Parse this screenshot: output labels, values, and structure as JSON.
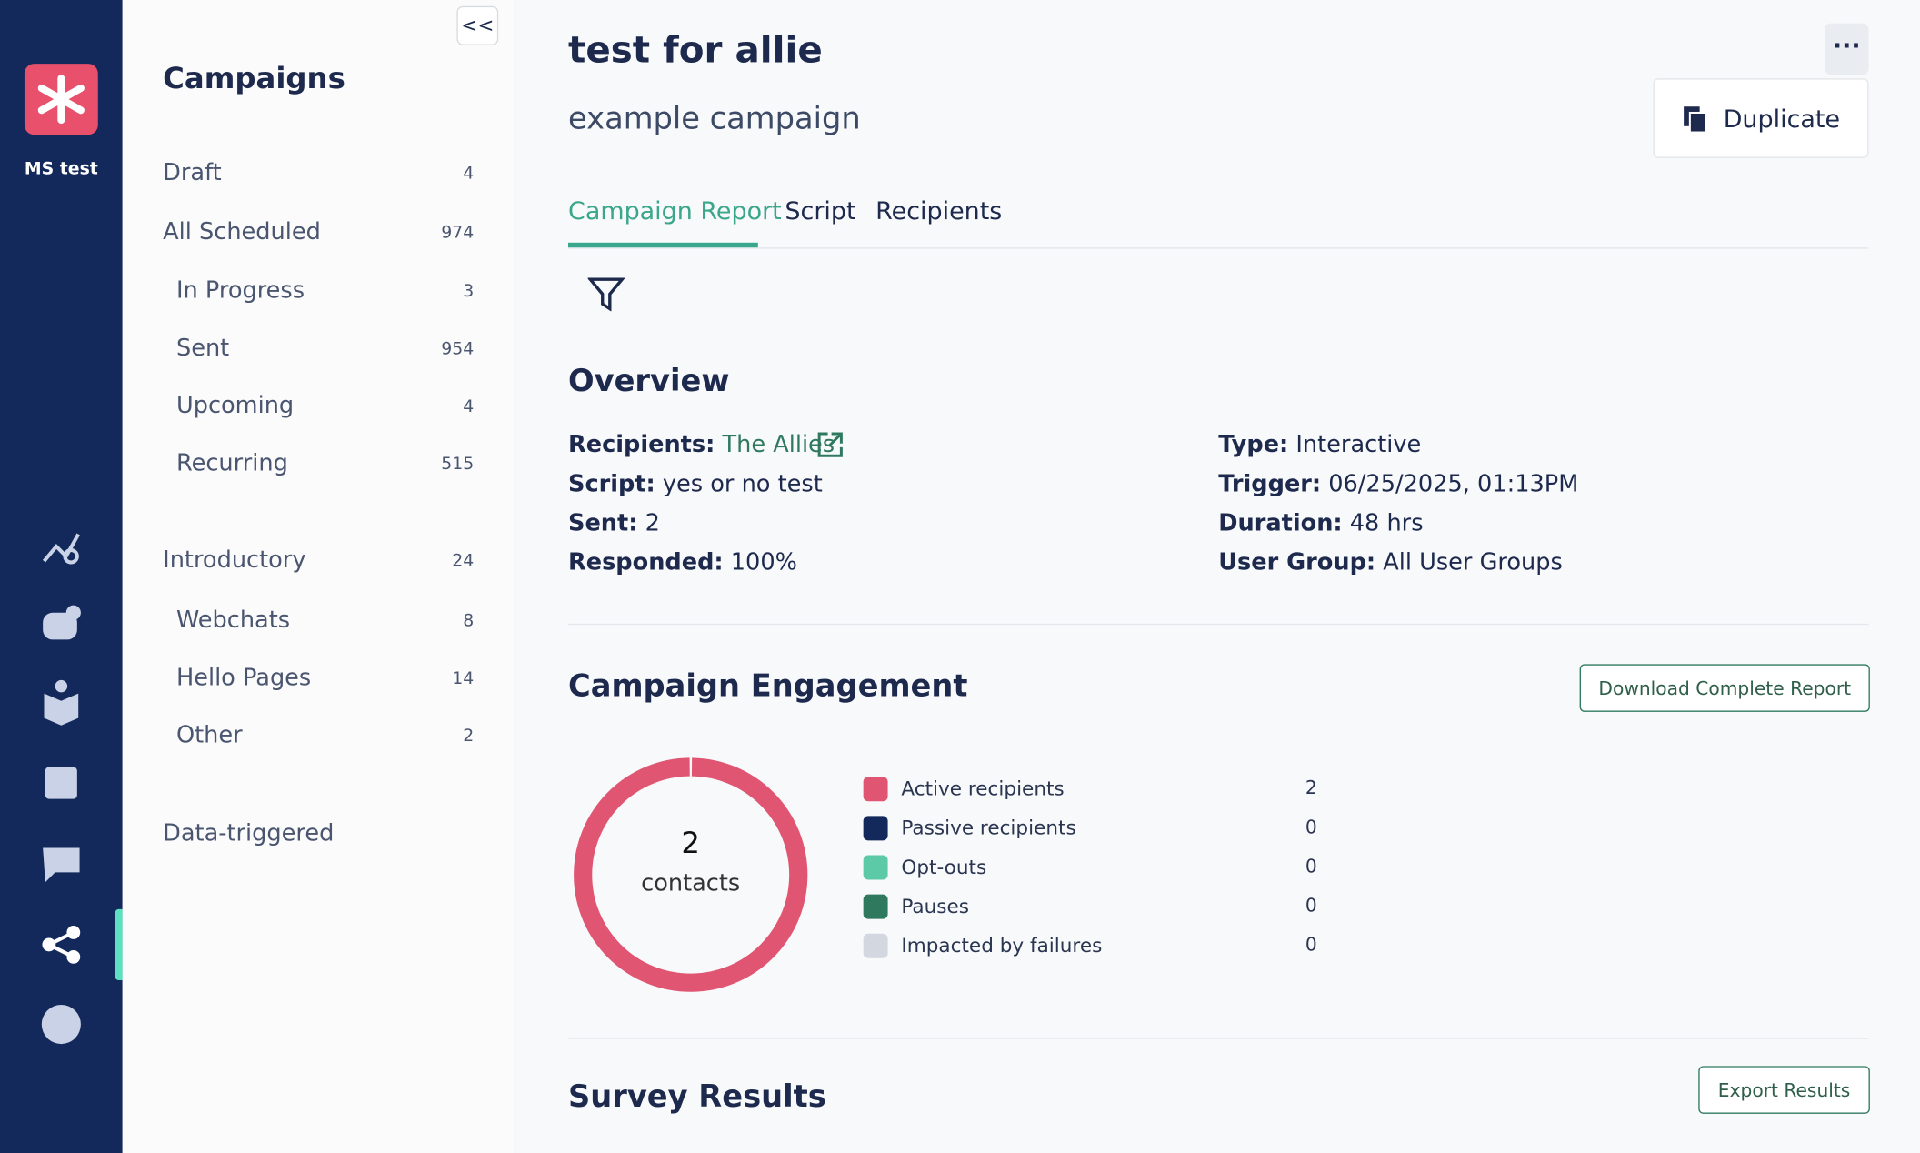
{
  "sidebar": {
    "workspace": "MS test"
  },
  "nav": {
    "title": "Campaigns",
    "items": [
      {
        "label": "Draft",
        "count": "4"
      },
      {
        "label": "All Scheduled",
        "count": "974"
      },
      {
        "label": "In Progress",
        "count": "3"
      },
      {
        "label": "Sent",
        "count": "954"
      },
      {
        "label": "Upcoming",
        "count": "4"
      },
      {
        "label": "Recurring",
        "count": "515"
      },
      {
        "label": "Introductory",
        "count": "24"
      },
      {
        "label": "Webchats",
        "count": "8"
      },
      {
        "label": "Hello Pages",
        "count": "14"
      },
      {
        "label": "Other",
        "count": "2"
      },
      {
        "label": "Data-triggered"
      }
    ]
  },
  "header": {
    "title": "test for allie",
    "subtitle": "example campaign",
    "duplicate": "Duplicate",
    "tabs": [
      "Campaign Report",
      "Script",
      "Recipients"
    ]
  },
  "overview": {
    "title": "Overview",
    "fields": [
      {
        "label": "Recipients:",
        "value": "The Allies"
      },
      {
        "label": "Script:",
        "value": "yes or no test"
      },
      {
        "label": "Sent:",
        "value": "2"
      },
      {
        "label": "Responded:",
        "value": "100%"
      },
      {
        "label": "Type:",
        "value": "Interactive"
      },
      {
        "label": "Trigger:",
        "value": "06/25/2025, 01:13PM"
      },
      {
        "label": "Duration:",
        "value": "48 hrs"
      },
      {
        "label": "User Group:",
        "value": "All User Groups"
      }
    ]
  },
  "engagement": {
    "title": "Campaign Engagement",
    "download": "Download Complete Report"
  },
  "chart_data": {
    "type": "pie",
    "center_value": 2,
    "center_label": "contacts",
    "categories": [
      "Active recipients",
      "Passive recipients",
      "Opt-outs",
      "Pauses",
      "Impacted by failures"
    ],
    "values": [
      2,
      0,
      0,
      0,
      0
    ],
    "colors": [
      "#e05672",
      "#13295b",
      "#5cc9a7",
      "#2f7a5f",
      "#d3d7e0"
    ]
  },
  "survey": {
    "title": "Survey Results",
    "export": "Export Results"
  }
}
